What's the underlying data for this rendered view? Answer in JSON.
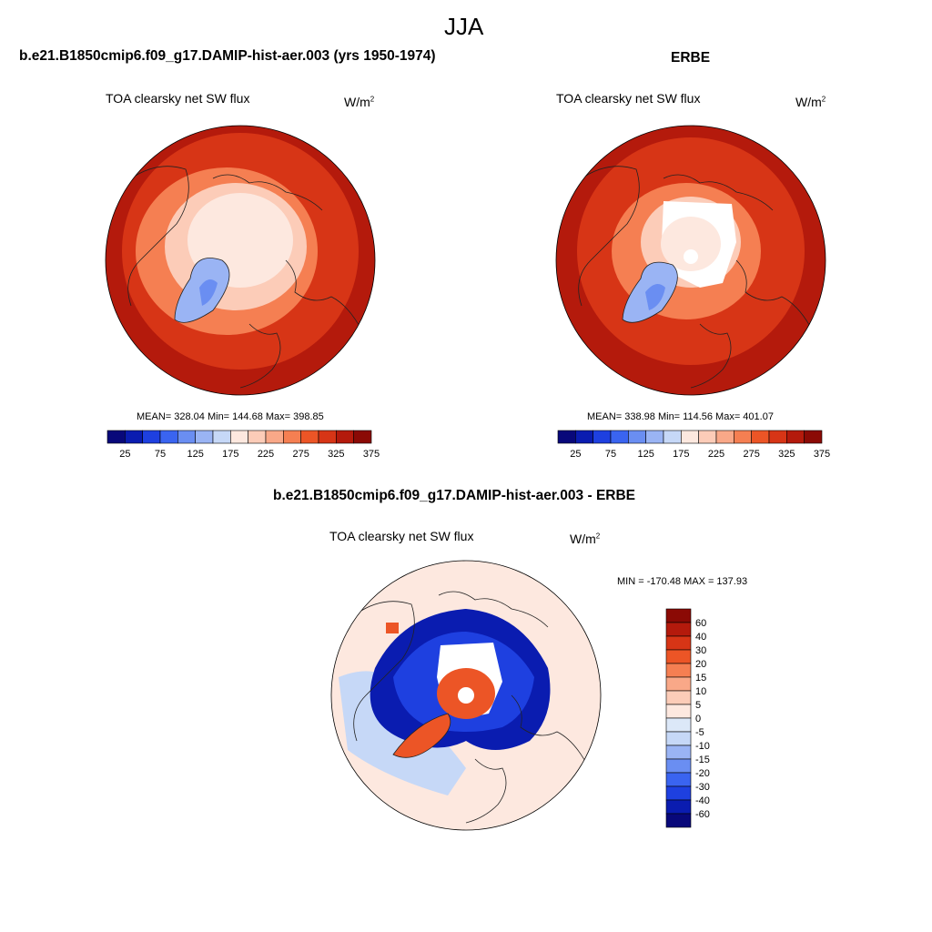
{
  "figure": {
    "season": "JJA"
  },
  "panels": [
    {
      "title": "b.e21.B1850cmip6.f09_g17.DAMIP-hist-aer.003 (yrs 1950-1974)",
      "variable": "TOA clearsky net SW flux",
      "units": "W/m",
      "units_superscript": "2",
      "stats": "MEAN= 328.04  Min= 144.68  Max= 398.85",
      "mean": 328.04,
      "min": 144.68,
      "max": 398.85
    },
    {
      "title": "ERBE",
      "variable": "TOA clearsky net SW flux",
      "units": "W/m",
      "units_superscript": "2",
      "stats": "MEAN= 338.98  Min= 114.56  Max= 401.07",
      "mean": 338.98,
      "min": 114.56,
      "max": 401.07
    },
    {
      "title": "b.e21.B1850cmip6.f09_g17.DAMIP-hist-aer.003 - ERBE",
      "variable": "TOA clearsky net SW flux",
      "units": "W/m",
      "units_superscript": "2",
      "stats": "MIN = -170.48 MAX = 137.93",
      "min": -170.48,
      "max": 137.93
    }
  ],
  "colorbar_abs": {
    "colors": [
      "#08087a",
      "#0a1cb0",
      "#1e40e0",
      "#3a64f0",
      "#6a8ef2",
      "#9ab4f4",
      "#c6d8f7",
      "#fde8df",
      "#fcccb8",
      "#f9a888",
      "#f57f52",
      "#ec5526",
      "#d73516",
      "#b41a0c",
      "#8b0a05"
    ],
    "tick_labels": [
      "25",
      "75",
      "125",
      "175",
      "225",
      "275",
      "325",
      "375"
    ]
  },
  "colorbar_diff": {
    "colors": [
      "#8b0a05",
      "#b41a0c",
      "#d73516",
      "#ec5526",
      "#f57f52",
      "#f9a888",
      "#fcccb8",
      "#fde8df",
      "#dce8f8",
      "#c6d8f7",
      "#9ab4f4",
      "#6a8ef2",
      "#3a64f0",
      "#1e40e0",
      "#0a1cb0",
      "#08087a"
    ],
    "tick_labels": [
      "60",
      "40",
      "30",
      "20",
      "15",
      "10",
      "5",
      "0",
      "-5",
      "-10",
      "-15",
      "-20",
      "-30",
      "-40",
      "-60"
    ]
  },
  "map_colors": {
    "abs_outer": "#b41a0c",
    "abs_mid": "#d73516",
    "abs_inner": "#f57f52",
    "abs_light": "#fcccb8",
    "abs_pale": "#fde8df",
    "abs_blue": "#9ab4f4",
    "abs_blue2": "#6a8ef2",
    "diff_bg": "#fde8df",
    "diff_blue": "#0a1cb0",
    "diff_blue2": "#1e40e0",
    "diff_red": "#ec5526",
    "diff_lightblue": "#c6d8f7"
  }
}
